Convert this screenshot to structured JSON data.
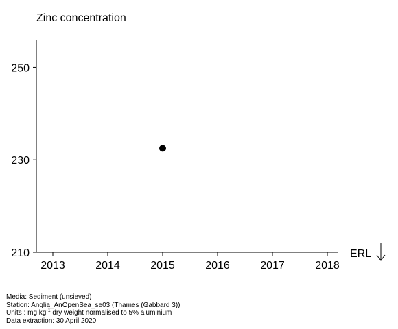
{
  "chart_data": {
    "type": "scatter",
    "title": "Zinc concentration",
    "xlim": [
      2012.7,
      2018.2
    ],
    "ylim": [
      210,
      256
    ],
    "x_ticks": [
      2013,
      2014,
      2015,
      2016,
      2017,
      2018
    ],
    "y_ticks": [
      210,
      230,
      250
    ],
    "series": [
      {
        "points": [
          {
            "x": 2015,
            "y": 232.5
          }
        ]
      }
    ],
    "reference_line": {
      "label": "ERL",
      "position": "below axis",
      "arrow": "down"
    },
    "grid": false
  },
  "footer": {
    "media": "Media: Sediment (unsieved)",
    "station": "Station: Anglia_AnOpenSea_se03 (Thames (Gabbard 3))",
    "units_prefix": "Units : mg kg",
    "units_exponent": "-1",
    "units_suffix": " dry weight normalised to 5% aluminium",
    "extraction": "Data extraction: 30 April 2020"
  }
}
